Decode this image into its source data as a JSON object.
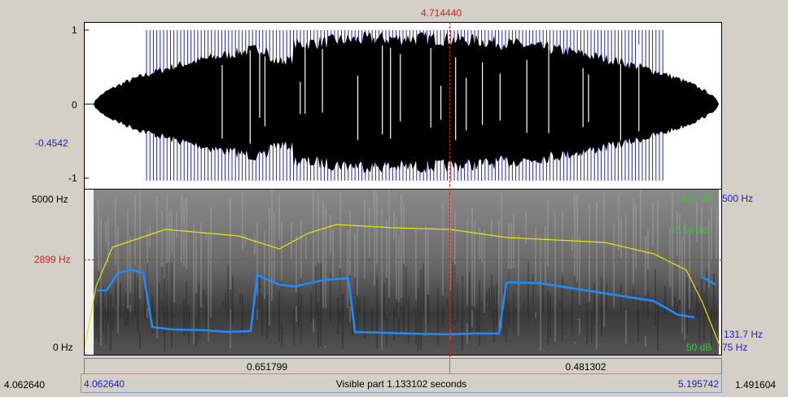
{
  "cursor": {
    "time": "4.714440"
  },
  "waveform": {
    "y_max_label": "1",
    "y_zero_label": "0",
    "y_cursor_label": "-0.4542",
    "y_min_label": "-1"
  },
  "spectrogram": {
    "freq_top_label": "5000 Hz",
    "freq_cursor_label": "2899 Hz",
    "freq_bottom_label": "0 Hz",
    "intensity_top_label": "100 dB",
    "intensity_cursor_label": "67.55 dB",
    "intensity_bottom_label": "50 dB",
    "pitch_top_label": "500 Hz",
    "pitch_cursor_label": "131.7 Hz",
    "pitch_bottom_label": "75 Hz"
  },
  "segments": {
    "left_duration": "0.651799",
    "right_duration": "0.481302"
  },
  "bottom_bar": {
    "outer_start": "4.062640",
    "visible_start": "4.062640",
    "visible_text": "Visible part 1.133102 seconds",
    "visible_end": "5.195742",
    "outer_end": "1.491604"
  },
  "colors": {
    "pitch": "#1e8cff",
    "intensity": "#e6e600",
    "cursor": "#d02020",
    "intensity_label": "#3ec23e",
    "pitch_label": "#2020c0"
  }
}
